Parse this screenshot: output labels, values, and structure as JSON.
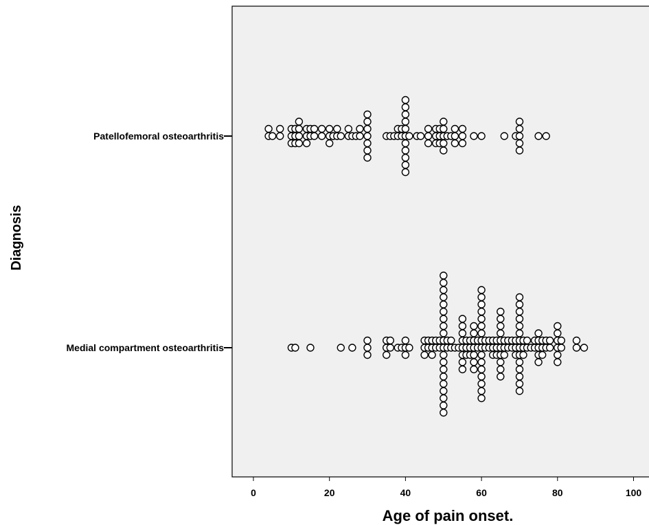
{
  "chart_data": {
    "type": "scatter",
    "subtype": "dot-plot",
    "xlabel": "Age of pain onset.",
    "ylabel": "Diagnosis",
    "xlim": [
      -5,
      103
    ],
    "x_ticks": [
      0,
      20,
      40,
      60,
      80,
      100
    ],
    "x_tick_labels": [
      "0",
      "20",
      "40",
      "60",
      "80",
      "100"
    ],
    "categories": [
      "Patellofemoral osteoarthritis",
      "Medial compartment osteoarthritis"
    ],
    "grid": false,
    "legend": "none",
    "colors": {
      "plot_bg": "#f0f0f0",
      "marker_edge": "#000000",
      "marker_fill": "#ffffff"
    },
    "series": [
      {
        "category": "Patellofemoral osteoarthritis",
        "values": [
          4,
          4,
          5,
          7,
          7,
          10,
          10,
          10,
          11,
          11,
          11,
          12,
          12,
          12,
          12,
          14,
          14,
          14,
          15,
          15,
          16,
          16,
          18,
          18,
          20,
          20,
          20,
          21,
          22,
          22,
          23,
          25,
          25,
          26,
          27,
          28,
          28,
          30,
          30,
          30,
          30,
          30,
          30,
          30,
          35,
          36,
          37,
          38,
          38,
          39,
          39,
          40,
          40,
          40,
          40,
          40,
          40,
          40,
          40,
          40,
          40,
          40,
          41,
          43,
          44,
          46,
          46,
          46,
          48,
          48,
          48,
          49,
          49,
          49,
          50,
          50,
          50,
          50,
          50,
          51,
          52,
          53,
          53,
          53,
          55,
          55,
          55,
          58,
          60,
          66,
          69,
          70,
          70,
          70,
          70,
          70,
          75,
          77
        ]
      },
      {
        "category": "Medial compartment osteoarthritis",
        "values": [
          10,
          11,
          15,
          23,
          26,
          30,
          30,
          30,
          35,
          35,
          35,
          36,
          36,
          38,
          39,
          40,
          40,
          40,
          41,
          45,
          45,
          45,
          46,
          46,
          47,
          47,
          47,
          48,
          48,
          49,
          49,
          50,
          50,
          50,
          50,
          50,
          50,
          50,
          50,
          50,
          50,
          50,
          50,
          50,
          50,
          50,
          50,
          50,
          50,
          50,
          50,
          51,
          51,
          52,
          52,
          53,
          54,
          55,
          55,
          55,
          55,
          55,
          55,
          55,
          55,
          56,
          56,
          56,
          57,
          57,
          57,
          58,
          58,
          58,
          58,
          58,
          58,
          58,
          59,
          59,
          60,
          60,
          60,
          60,
          60,
          60,
          60,
          60,
          60,
          60,
          60,
          60,
          60,
          60,
          60,
          60,
          61,
          61,
          62,
          62,
          63,
          63,
          63,
          64,
          64,
          64,
          65,
          65,
          65,
          65,
          65,
          65,
          65,
          65,
          65,
          65,
          66,
          66,
          66,
          67,
          67,
          68,
          68,
          69,
          69,
          69,
          70,
          70,
          70,
          70,
          70,
          70,
          70,
          70,
          70,
          70,
          70,
          70,
          70,
          70,
          71,
          71,
          71,
          72,
          72,
          73,
          74,
          74,
          75,
          75,
          75,
          75,
          75,
          76,
          76,
          76,
          77,
          77,
          78,
          78,
          80,
          80,
          80,
          80,
          80,
          80,
          81,
          81,
          85,
          85,
          87
        ]
      }
    ]
  }
}
